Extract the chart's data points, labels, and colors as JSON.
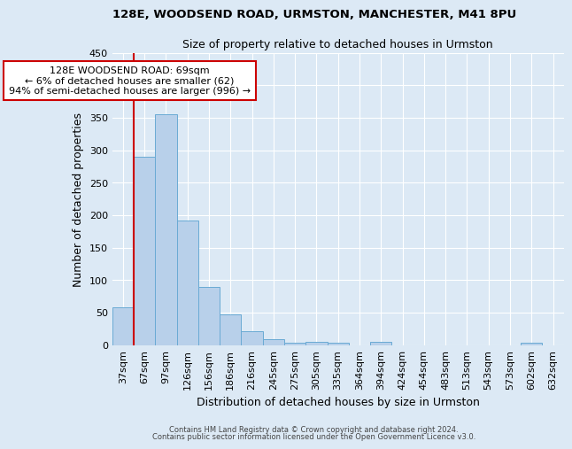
{
  "title1": "128E, WOODSEND ROAD, URMSTON, MANCHESTER, M41 8PU",
  "title2": "Size of property relative to detached houses in Urmston",
  "xlabel": "Distribution of detached houses by size in Urmston",
  "ylabel": "Number of detached properties",
  "bar_labels": [
    "37sqm",
    "67sqm",
    "97sqm",
    "126sqm",
    "156sqm",
    "186sqm",
    "216sqm",
    "245sqm",
    "275sqm",
    "305sqm",
    "335sqm",
    "364sqm",
    "394sqm",
    "424sqm",
    "454sqm",
    "483sqm",
    "513sqm",
    "543sqm",
    "573sqm",
    "602sqm",
    "632sqm"
  ],
  "bar_values": [
    58,
    290,
    355,
    192,
    90,
    47,
    21,
    9,
    4,
    5,
    4,
    0,
    5,
    0,
    0,
    0,
    0,
    0,
    0,
    4,
    0
  ],
  "bar_color": "#b8d0ea",
  "bar_edge_color": "#6aaad4",
  "bg_color": "#dce9f5",
  "axes_bg_color": "#dce9f5",
  "grid_color": "#ffffff",
  "redline_x": 1,
  "annotation_text": "128E WOODSEND ROAD: 69sqm\n← 6% of detached houses are smaller (62)\n94% of semi-detached houses are larger (996) →",
  "annotation_box_color": "#ffffff",
  "annotation_box_edge": "#cc0000",
  "footer1": "Contains HM Land Registry data © Crown copyright and database right 2024.",
  "footer2": "Contains public sector information licensed under the Open Government Licence v3.0.",
  "ylim": [
    0,
    450
  ],
  "yticks": [
    0,
    50,
    100,
    150,
    200,
    250,
    300,
    350,
    400,
    450
  ]
}
